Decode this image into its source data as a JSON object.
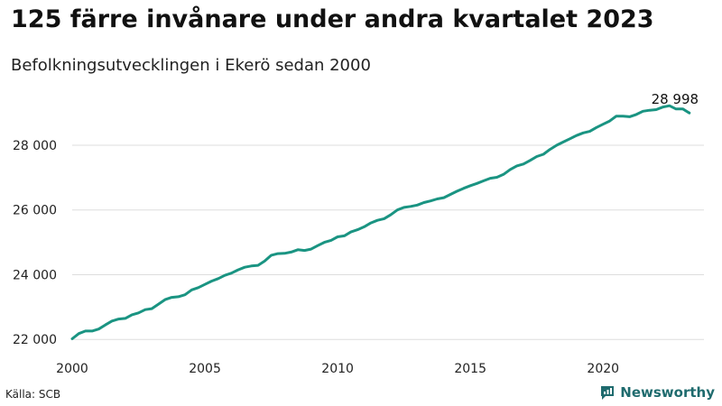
{
  "title": "125 färre invånare under andra kvartalet 2023",
  "subtitle": "Befolkningsutvecklingen i Ekerö sedan 2000",
  "source": "Källa: SCB",
  "brand": "Newsworthy",
  "colors": {
    "line": "#1a9482",
    "grid": "#dddddd",
    "brand": "#1f6b6e"
  },
  "chart_data": {
    "type": "line",
    "title": "125 färre invånare under andra kvartalet 2023",
    "subtitle": "Befolkningsutvecklingen i Ekerö sedan 2000",
    "xlabel": "",
    "ylabel": "",
    "xlim": [
      2000,
      2023.8
    ],
    "ylim": [
      21950,
      29700
    ],
    "grid": true,
    "x_ticks": [
      2000,
      2005,
      2010,
      2015,
      2020
    ],
    "x_tick_labels": [
      "2000",
      "2005",
      "2010",
      "2015",
      "2020"
    ],
    "y_ticks": [
      22000,
      24000,
      26000,
      28000
    ],
    "y_tick_labels": [
      "22 000",
      "24 000",
      "26 000",
      "28 000"
    ],
    "annotation": {
      "label": "28 998",
      "x": 2023.25,
      "y": 29050
    },
    "series": [
      {
        "x": [
          2000.0,
          2000.25,
          2000.5,
          2000.75,
          2001.0,
          2001.25,
          2001.5,
          2001.75,
          2002.0,
          2002.25,
          2002.5,
          2002.75,
          2003.0,
          2003.25,
          2003.5,
          2003.75,
          2004.0,
          2004.25,
          2004.5,
          2004.75,
          2005.0,
          2005.25,
          2005.5,
          2005.75,
          2006.0,
          2006.25,
          2006.5,
          2006.75,
          2007.0,
          2007.25,
          2007.5,
          2007.75,
          2008.0,
          2008.25,
          2008.5,
          2008.75,
          2009.0,
          2009.25,
          2009.5,
          2009.75,
          2010.0,
          2010.25,
          2010.5,
          2010.75,
          2011.0,
          2011.25,
          2011.5,
          2011.75,
          2012.0,
          2012.25,
          2012.5,
          2012.75,
          2013.0,
          2013.25,
          2013.5,
          2013.75,
          2014.0,
          2014.25,
          2014.5,
          2014.75,
          2015.0,
          2015.25,
          2015.5,
          2015.75,
          2016.0,
          2016.25,
          2016.5,
          2016.75,
          2017.0,
          2017.25,
          2017.5,
          2017.75,
          2018.0,
          2018.25,
          2018.5,
          2018.75,
          2019.0,
          2019.25,
          2019.5,
          2019.75,
          2020.0,
          2020.25,
          2020.5,
          2020.75,
          2021.0,
          2021.25,
          2021.5,
          2021.75,
          2022.0,
          2022.25,
          2022.5,
          2022.75,
          2023.0,
          2023.25
        ],
        "values": [
          22020,
          22180,
          22260,
          22260,
          22320,
          22450,
          22570,
          22630,
          22650,
          22760,
          22820,
          22920,
          22950,
          23090,
          23230,
          23300,
          23320,
          23380,
          23530,
          23600,
          23700,
          23800,
          23880,
          23980,
          24050,
          24150,
          24230,
          24270,
          24290,
          24420,
          24600,
          24650,
          24660,
          24700,
          24770,
          24750,
          24790,
          24900,
          25000,
          25060,
          25170,
          25200,
          25320,
          25390,
          25480,
          25600,
          25680,
          25730,
          25850,
          26000,
          26080,
          26110,
          26150,
          26230,
          26280,
          26340,
          26380,
          26480,
          26580,
          26670,
          26750,
          26820,
          26900,
          26980,
          27010,
          27100,
          27250,
          27360,
          27420,
          27530,
          27650,
          27720,
          27870,
          28000,
          28100,
          28200,
          28300,
          28380,
          28430,
          28550,
          28650,
          28750,
          28900,
          28900,
          28880,
          28950,
          29050,
          29080,
          29100,
          29180,
          29220,
          29120,
          29123,
          28998
        ]
      }
    ]
  }
}
